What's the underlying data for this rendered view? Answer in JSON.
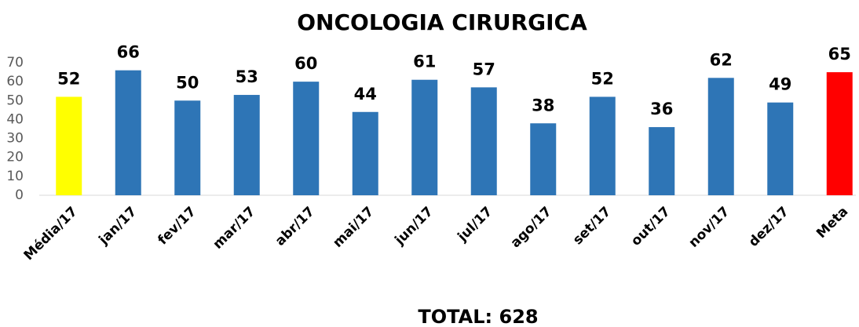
{
  "chart_data": {
    "type": "bar",
    "title": "ONCOLOGIA CIRURGICA",
    "categories": [
      "Média/17",
      "jan/17",
      "fev/17",
      "mar/17",
      "abr/17",
      "mai/17",
      "jun/17",
      "jul/17",
      "ago/17",
      "set/17",
      "out/17",
      "nov/17",
      "dez/17",
      "Meta"
    ],
    "values": [
      52,
      66,
      50,
      53,
      60,
      44,
      61,
      57,
      38,
      52,
      36,
      62,
      49,
      65
    ],
    "colors": [
      "#ffff00",
      "#2e75b6",
      "#2e75b6",
      "#2e75b6",
      "#2e75b6",
      "#2e75b6",
      "#2e75b6",
      "#2e75b6",
      "#2e75b6",
      "#2e75b6",
      "#2e75b6",
      "#2e75b6",
      "#2e75b6",
      "#ff0000"
    ],
    "ylim": [
      0,
      70
    ],
    "yticks": [
      0,
      10,
      20,
      30,
      40,
      50,
      60,
      70
    ],
    "grid": false,
    "annotation": "TOTAL: 628"
  }
}
